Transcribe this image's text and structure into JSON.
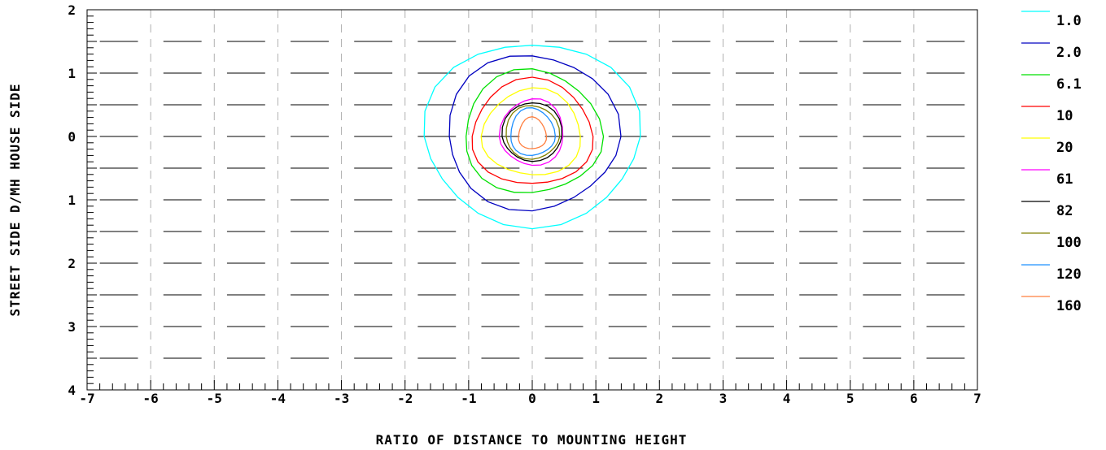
{
  "chart_data": {
    "type": "contour",
    "xlabel": "RATIO OF DISTANCE TO MOUNTING HEIGHT",
    "ylabel": "STREET SIDE  D/MH  HOUSE SIDE",
    "xlim": [
      -7,
      7
    ],
    "ylim": [
      -4,
      2
    ],
    "x_ticks": [
      -7,
      -6,
      -5,
      -4,
      -3,
      -2,
      -1,
      0,
      1,
      2,
      3,
      4,
      5,
      6,
      7
    ],
    "x_tick_labels": [
      "-7",
      "-6",
      "-5",
      "-4",
      "-3",
      "-2",
      "-1",
      "0",
      "1",
      "2",
      "3",
      "4",
      "5",
      "6",
      "7"
    ],
    "y_ticks": [
      2,
      1,
      0,
      -1,
      -2,
      -3,
      -4
    ],
    "y_tick_labels": [
      "2",
      "1",
      "0",
      "1",
      "2",
      "3",
      "4"
    ],
    "vertical_gridlines": "dashed at integer x",
    "road_marking_dashes_y": [
      1.5,
      1.0,
      0.5,
      0.0,
      -0.5,
      -1.0,
      -1.5,
      -2.0,
      -2.5,
      -3.0,
      -3.5
    ],
    "legend_position": "right",
    "series": [
      {
        "name": "1.0",
        "color": "#00ffff",
        "rx": 1.7,
        "ry_top": 1.5,
        "ry_bottom": 1.4
      },
      {
        "name": "2.0",
        "color": "#0000c0",
        "rx": 1.35,
        "ry_top": 1.3,
        "ry_bottom": 1.15
      },
      {
        "name": "6.1",
        "color": "#00e000",
        "rx": 1.08,
        "ry_top": 1.05,
        "ry_bottom": 0.9
      },
      {
        "name": "10",
        "color": "#ff0000",
        "rx": 0.95,
        "ry_top": 0.9,
        "ry_bottom": 0.77
      },
      {
        "name": "20",
        "color": "#ffff00",
        "rx": 0.78,
        "ry_top": 0.75,
        "ry_bottom": 0.62
      },
      {
        "name": "61",
        "color": "#ff00ff",
        "rx": 0.5,
        "ry_top": 0.6,
        "ry_bottom": 0.45
      },
      {
        "name": "82",
        "color": "#000000",
        "rx": 0.47,
        "ry_top": 0.55,
        "ry_bottom": 0.38
      },
      {
        "name": "100",
        "color": "#808000",
        "rx": 0.42,
        "ry_top": 0.5,
        "ry_bottom": 0.35
      },
      {
        "name": "120",
        "color": "#1e90ff",
        "rx": 0.35,
        "ry_top": 0.45,
        "ry_bottom": 0.3
      },
      {
        "name": "160",
        "color": "#ff7f3f",
        "rx": 0.22,
        "ry_top": 0.3,
        "ry_bottom": 0.2
      }
    ]
  }
}
